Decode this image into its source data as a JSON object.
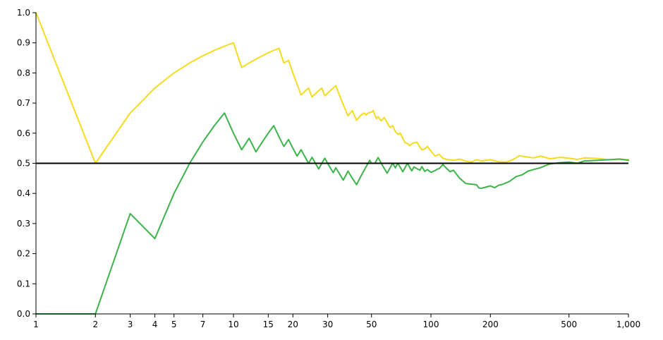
{
  "chart_data": {
    "type": "line",
    "title": "",
    "xlabel": "",
    "ylabel": "",
    "x_scale": "log",
    "xlim": [
      1,
      1000
    ],
    "ylim": [
      0.0,
      1.0
    ],
    "grid": false,
    "legend": "none",
    "x_ticks": [
      1,
      2,
      3,
      4,
      5,
      7,
      10,
      15,
      20,
      30,
      50,
      100,
      200,
      500,
      1000
    ],
    "x_tick_labels": [
      "1",
      "2",
      "3",
      "4",
      "5",
      "7",
      "10",
      "15",
      "20",
      "30",
      "50",
      "100",
      "200",
      "500",
      "1,000"
    ],
    "y_ticks": [
      0.0,
      0.1,
      0.2,
      0.3,
      0.4,
      0.5,
      0.6,
      0.7,
      0.8,
      0.9,
      1.0
    ],
    "y_tick_labels": [
      "0.0",
      "0.1",
      "0.2",
      "0.3",
      "0.4",
      "0.5",
      "0.6",
      "0.7",
      "0.8",
      "0.9",
      "1.0"
    ],
    "reference_line": {
      "y": 0.5,
      "color": "#000000"
    },
    "series": [
      {
        "color": "#f5dc1e",
        "points": [
          [
            1,
            1.0
          ],
          [
            2,
            0.5
          ],
          [
            3,
            0.667
          ],
          [
            4,
            0.75
          ],
          [
            5,
            0.8
          ],
          [
            6,
            0.833
          ],
          [
            7,
            0.857
          ],
          [
            8,
            0.875
          ],
          [
            9,
            0.889
          ],
          [
            10,
            0.9
          ],
          [
            11,
            0.818
          ],
          [
            12,
            0.833
          ],
          [
            13,
            0.846
          ],
          [
            14,
            0.857
          ],
          [
            15,
            0.867
          ],
          [
            16,
            0.875
          ],
          [
            17,
            0.882
          ],
          [
            18,
            0.833
          ],
          [
            19,
            0.842
          ],
          [
            20,
            0.8
          ],
          [
            21,
            0.762
          ],
          [
            22,
            0.727
          ],
          [
            23,
            0.739
          ],
          [
            24,
            0.75
          ],
          [
            25,
            0.72
          ],
          [
            26,
            0.731
          ],
          [
            27,
            0.741
          ],
          [
            28,
            0.75
          ],
          [
            29,
            0.724
          ],
          [
            30,
            0.733
          ],
          [
            31,
            0.742
          ],
          [
            32,
            0.75
          ],
          [
            33,
            0.758
          ],
          [
            34,
            0.735
          ],
          [
            36,
            0.694
          ],
          [
            38,
            0.658
          ],
          [
            40,
            0.675
          ],
          [
            42,
            0.643
          ],
          [
            44,
            0.659
          ],
          [
            46,
            0.667
          ],
          [
            47,
            0.66
          ],
          [
            48,
            0.667
          ],
          [
            50,
            0.67
          ],
          [
            51,
            0.675
          ],
          [
            52,
            0.66
          ],
          [
            53,
            0.648
          ],
          [
            54,
            0.655
          ],
          [
            56,
            0.641
          ],
          [
            58,
            0.652
          ],
          [
            60,
            0.635
          ],
          [
            62,
            0.619
          ],
          [
            64,
            0.625
          ],
          [
            66,
            0.606
          ],
          [
            68,
            0.596
          ],
          [
            70,
            0.6
          ],
          [
            72,
            0.583
          ],
          [
            74,
            0.568
          ],
          [
            76,
            0.566
          ],
          [
            78,
            0.558
          ],
          [
            80,
            0.565
          ],
          [
            82,
            0.568
          ],
          [
            85,
            0.57
          ],
          [
            88,
            0.553
          ],
          [
            90,
            0.545
          ],
          [
            93,
            0.548
          ],
          [
            96,
            0.556
          ],
          [
            100,
            0.54
          ],
          [
            105,
            0.524
          ],
          [
            110,
            0.53
          ],
          [
            115,
            0.517
          ],
          [
            120,
            0.513
          ],
          [
            130,
            0.51
          ],
          [
            140,
            0.514
          ],
          [
            150,
            0.507
          ],
          [
            160,
            0.504
          ],
          [
            170,
            0.512
          ],
          [
            180,
            0.508
          ],
          [
            200,
            0.512
          ],
          [
            220,
            0.505
          ],
          [
            240,
            0.504
          ],
          [
            260,
            0.512
          ],
          [
            280,
            0.525
          ],
          [
            300,
            0.522
          ],
          [
            330,
            0.518
          ],
          [
            360,
            0.524
          ],
          [
            400,
            0.515
          ],
          [
            450,
            0.52
          ],
          [
            500,
            0.517
          ],
          [
            550,
            0.513
          ],
          [
            600,
            0.518
          ],
          [
            700,
            0.516
          ],
          [
            800,
            0.512
          ],
          [
            900,
            0.514
          ],
          [
            1000,
            0.512
          ]
        ]
      },
      {
        "color": "#3cb44b",
        "points": [
          [
            1,
            0.0
          ],
          [
            2,
            0.0
          ],
          [
            3,
            0.333
          ],
          [
            4,
            0.25
          ],
          [
            5,
            0.4
          ],
          [
            6,
            0.5
          ],
          [
            7,
            0.571
          ],
          [
            8,
            0.625
          ],
          [
            9,
            0.667
          ],
          [
            10,
            0.6
          ],
          [
            11,
            0.545
          ],
          [
            12,
            0.583
          ],
          [
            13,
            0.538
          ],
          [
            14,
            0.571
          ],
          [
            15,
            0.6
          ],
          [
            16,
            0.625
          ],
          [
            17,
            0.588
          ],
          [
            18,
            0.556
          ],
          [
            19,
            0.579
          ],
          [
            20,
            0.55
          ],
          [
            21,
            0.524
          ],
          [
            22,
            0.545
          ],
          [
            23,
            0.522
          ],
          [
            24,
            0.5
          ],
          [
            25,
            0.52
          ],
          [
            26,
            0.5
          ],
          [
            27,
            0.481
          ],
          [
            28,
            0.5
          ],
          [
            29,
            0.517
          ],
          [
            30,
            0.5
          ],
          [
            31,
            0.484
          ],
          [
            32,
            0.469
          ],
          [
            33,
            0.485
          ],
          [
            34,
            0.471
          ],
          [
            36,
            0.444
          ],
          [
            38,
            0.474
          ],
          [
            40,
            0.45
          ],
          [
            42,
            0.429
          ],
          [
            44,
            0.455
          ],
          [
            46,
            0.478
          ],
          [
            48,
            0.5
          ],
          [
            49,
            0.51
          ],
          [
            50,
            0.5
          ],
          [
            52,
            0.5
          ],
          [
            54,
            0.519
          ],
          [
            56,
            0.5
          ],
          [
            58,
            0.483
          ],
          [
            60,
            0.467
          ],
          [
            62,
            0.484
          ],
          [
            64,
            0.5
          ],
          [
            66,
            0.485
          ],
          [
            68,
            0.5
          ],
          [
            70,
            0.486
          ],
          [
            72,
            0.472
          ],
          [
            74,
            0.486
          ],
          [
            76,
            0.5
          ],
          [
            78,
            0.487
          ],
          [
            80,
            0.475
          ],
          [
            82,
            0.488
          ],
          [
            85,
            0.482
          ],
          [
            88,
            0.477
          ],
          [
            90,
            0.489
          ],
          [
            93,
            0.473
          ],
          [
            96,
            0.479
          ],
          [
            100,
            0.47
          ],
          [
            105,
            0.476
          ],
          [
            108,
            0.481
          ],
          [
            110,
            0.482
          ],
          [
            115,
            0.496
          ],
          [
            120,
            0.483
          ],
          [
            125,
            0.472
          ],
          [
            130,
            0.477
          ],
          [
            135,
            0.463
          ],
          [
            140,
            0.45
          ],
          [
            150,
            0.433
          ],
          [
            160,
            0.431
          ],
          [
            170,
            0.429
          ],
          [
            175,
            0.418
          ],
          [
            180,
            0.417
          ],
          [
            190,
            0.421
          ],
          [
            200,
            0.425
          ],
          [
            210,
            0.419
          ],
          [
            220,
            0.427
          ],
          [
            230,
            0.43
          ],
          [
            250,
            0.44
          ],
          [
            270,
            0.456
          ],
          [
            290,
            0.462
          ],
          [
            310,
            0.474
          ],
          [
            330,
            0.479
          ],
          [
            360,
            0.486
          ],
          [
            400,
            0.498
          ],
          [
            450,
            0.502
          ],
          [
            500,
            0.504
          ],
          [
            550,
            0.5
          ],
          [
            600,
            0.508
          ],
          [
            700,
            0.51
          ],
          [
            800,
            0.512
          ],
          [
            900,
            0.514
          ],
          [
            1000,
            0.51
          ]
        ]
      }
    ]
  }
}
